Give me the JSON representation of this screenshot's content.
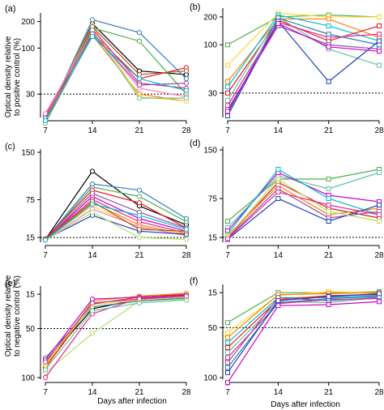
{
  "colors": [
    "#000000",
    "#e41a1c",
    "#4daf4a",
    "#377eb8",
    "#ff7f00",
    "#ffd92f",
    "#e7298a",
    "#a65628",
    "#f781bf",
    "#66c2a5",
    "#984ea3",
    "#1f3fbf",
    "#00bcd4",
    "#b3de69",
    "#cc00cc",
    "#ff6666"
  ],
  "y_axis_titles": {
    "top": [
      "Optical density relative",
      "to positive control (%)"
    ],
    "bottom": [
      "Optical density relative",
      "to negative control (%)"
    ]
  },
  "x_axis_title": "Days after infection",
  "chart_data": [
    {
      "panel": "(a)",
      "type": "line",
      "marker": "circle",
      "yscale": "log",
      "x": [
        7,
        14,
        21,
        28
      ],
      "xticks": [
        "7",
        "14",
        "21",
        "28"
      ],
      "ylim": [
        17,
        230
      ],
      "yticks": [
        30,
        100,
        200
      ],
      "reference_line": 30,
      "series": [
        {
          "values": [
            15,
            190,
            55,
            50
          ],
          "color": "#000000"
        },
        {
          "values": [
            18,
            150,
            45,
            60
          ],
          "color": "#e41a1c"
        },
        {
          "values": [
            16,
            170,
            120,
            30
          ],
          "color": "#4daf4a"
        },
        {
          "values": [
            15,
            210,
            150,
            45
          ],
          "color": "#377eb8"
        },
        {
          "values": [
            14,
            140,
            30,
            25
          ],
          "color": "#ff7f00"
        },
        {
          "values": [
            16,
            180,
            28,
            25
          ],
          "color": "#ffd92f"
        },
        {
          "values": [
            17,
            165,
            40,
            35
          ],
          "color": "#e7298a"
        },
        {
          "values": [
            15,
            175,
            50,
            55
          ],
          "color": "#a65628"
        },
        {
          "values": [
            18,
            155,
            35,
            28
          ],
          "color": "#f781bf"
        },
        {
          "values": [
            14,
            160,
            27,
            27
          ],
          "color": "#66c2a5"
        },
        {
          "values": [
            16,
            145,
            38,
            40
          ],
          "color": "#984ea3"
        },
        {
          "values": [
            15,
            135,
            45,
            33
          ],
          "color": "#00bcd4"
        }
      ]
    },
    {
      "panel": "(b)",
      "type": "line",
      "marker": "square",
      "yscale": "log",
      "x": [
        7,
        14,
        21,
        28
      ],
      "xticks": [
        "7",
        "14",
        "21",
        "28"
      ],
      "ylim": [
        17,
        230
      ],
      "yticks": [
        30,
        100,
        200
      ],
      "reference_line": 30,
      "series": [
        {
          "values": [
            100,
            200,
            210,
            200
          ],
          "color": "#4daf4a"
        },
        {
          "values": [
            60,
            220,
            200,
            200
          ],
          "color": "#ffd92f"
        },
        {
          "values": [
            40,
            190,
            190,
            120
          ],
          "color": "#ff7f00"
        },
        {
          "values": [
            35,
            210,
            160,
            110
          ],
          "color": "#00bcd4"
        },
        {
          "values": [
            30,
            185,
            110,
            160
          ],
          "color": "#e41a1c"
        },
        {
          "values": [
            25,
            200,
            90,
            60
          ],
          "color": "#66c2a5"
        },
        {
          "values": [
            22,
            175,
            120,
            130
          ],
          "color": "#e7298a"
        },
        {
          "values": [
            20,
            160,
            100,
            90
          ],
          "color": "#984ea3"
        },
        {
          "values": [
            18,
            195,
            130,
            100
          ],
          "color": "#377eb8"
        },
        {
          "values": [
            17,
            180,
            40,
            110
          ],
          "color": "#1f3fbf"
        },
        {
          "values": [
            19,
            170,
            95,
            85
          ],
          "color": "#cc00cc"
        }
      ]
    },
    {
      "panel": "(c)",
      "type": "line",
      "marker": "circle",
      "yscale": "linear",
      "x": [
        7,
        14,
        21,
        28
      ],
      "xticks": [
        "7",
        "14",
        "21",
        "28"
      ],
      "ylim": [
        10,
        150
      ],
      "yticks": [
        15,
        75,
        150
      ],
      "reference_line": 15,
      "series": [
        {
          "values": [
            12,
            120,
            65,
            35
          ],
          "color": "#000000"
        },
        {
          "values": [
            12,
            95,
            80,
            40
          ],
          "color": "#4daf4a"
        },
        {
          "values": [
            12,
            100,
            90,
            45
          ],
          "color": "#377eb8"
        },
        {
          "values": [
            13,
            90,
            70,
            30
          ],
          "color": "#e41a1c"
        },
        {
          "values": [
            12,
            80,
            45,
            25
          ],
          "color": "#cc00cc"
        },
        {
          "values": [
            11,
            85,
            55,
            30
          ],
          "color": "#984ea3"
        },
        {
          "values": [
            12,
            75,
            40,
            22
          ],
          "color": "#e7298a"
        },
        {
          "values": [
            11,
            70,
            35,
            20
          ],
          "color": "#ff7f00"
        },
        {
          "values": [
            12,
            65,
            30,
            22
          ],
          "color": "#ffd92f"
        },
        {
          "values": [
            11,
            60,
            32,
            18
          ],
          "color": "#f781bf"
        },
        {
          "values": [
            12,
            50,
            25,
            20
          ],
          "color": "#1f3fbf"
        },
        {
          "values": [
            11,
            55,
            15,
            12
          ],
          "color": "#b3de69"
        },
        {
          "values": [
            12,
            72,
            28,
            25
          ],
          "color": "#a65628"
        },
        {
          "values": [
            11,
            68,
            50,
            28
          ],
          "color": "#00bcd4"
        }
      ]
    },
    {
      "panel": "(d)",
      "type": "line",
      "marker": "square",
      "yscale": "linear",
      "x": [
        7,
        14,
        21,
        28
      ],
      "xticks": [
        "7",
        "14",
        "21",
        "28"
      ],
      "ylim": [
        10,
        150
      ],
      "yticks": [
        15,
        75,
        150
      ],
      "reference_line": 15,
      "series": [
        {
          "values": [
            40,
            105,
            105,
            120
          ],
          "color": "#4daf4a"
        },
        {
          "values": [
            30,
            110,
            90,
            115
          ],
          "color": "#66c2a5"
        },
        {
          "values": [
            25,
            115,
            80,
            70
          ],
          "color": "#cc00cc"
        },
        {
          "values": [
            20,
            120,
            75,
            50
          ],
          "color": "#00bcd4"
        },
        {
          "values": [
            15,
            100,
            60,
            45
          ],
          "color": "#e41a1c"
        },
        {
          "values": [
            18,
            95,
            50,
            60
          ],
          "color": "#ff7f00"
        },
        {
          "values": [
            14,
            90,
            45,
            55
          ],
          "color": "#984ea3"
        },
        {
          "values": [
            12,
            75,
            40,
            65
          ],
          "color": "#1f3fbf"
        },
        {
          "values": [
            16,
            105,
            55,
            40
          ],
          "color": "#b3de69"
        },
        {
          "values": [
            13,
            85,
            65,
            50
          ],
          "color": "#e7298a"
        }
      ]
    },
    {
      "panel": "(e)",
      "type": "line",
      "marker": "circle",
      "yscale": "inverted",
      "x": [
        7,
        14,
        21,
        28
      ],
      "xticks": [
        "7",
        "14",
        "21",
        "28"
      ],
      "ylim": [
        10,
        100
      ],
      "yticks": [
        15,
        50,
        100
      ],
      "reference_line": 50,
      "series": [
        {
          "values": [
            85,
            30,
            20,
            18
          ],
          "color": "#000000"
        },
        {
          "values": [
            90,
            25,
            18,
            15
          ],
          "color": "#e41a1c"
        },
        {
          "values": [
            95,
            55,
            22,
            20
          ],
          "color": "#b3de69"
        },
        {
          "values": [
            80,
            28,
            22,
            19
          ],
          "color": "#377eb8"
        },
        {
          "values": [
            88,
            22,
            17,
            14
          ],
          "color": "#ff7f00"
        },
        {
          "values": [
            82,
            20,
            18,
            16
          ],
          "color": "#cc00cc"
        },
        {
          "values": [
            100,
            35,
            19,
            17
          ],
          "color": "#e7298a"
        },
        {
          "values": [
            92,
            32,
            24,
            21
          ],
          "color": "#66c2a5"
        },
        {
          "values": [
            86,
            26,
            21,
            18
          ],
          "color": "#ffd92f"
        },
        {
          "values": [
            84,
            24,
            20,
            17
          ],
          "color": "#984ea3"
        }
      ]
    },
    {
      "panel": "(f)",
      "type": "line",
      "marker": "square",
      "yscale": "inverted",
      "x": [
        7,
        14,
        21,
        28
      ],
      "xticks": [
        "7",
        "14",
        "21",
        "28"
      ],
      "ylim": [
        10,
        100
      ],
      "yticks": [
        15,
        50,
        100
      ],
      "reference_line": 50,
      "series": [
        {
          "values": [
            45,
            15,
            15,
            14
          ],
          "color": "#4daf4a"
        },
        {
          "values": [
            55,
            18,
            14,
            15
          ],
          "color": "#ffd92f"
        },
        {
          "values": [
            60,
            17,
            16,
            15
          ],
          "color": "#ff7f00"
        },
        {
          "values": [
            65,
            20,
            20,
            18
          ],
          "color": "#00bcd4"
        },
        {
          "values": [
            70,
            22,
            18,
            17
          ],
          "color": "#e41a1c"
        },
        {
          "values": [
            75,
            24,
            25,
            20
          ],
          "color": "#66c2a5"
        },
        {
          "values": [
            80,
            26,
            22,
            21
          ],
          "color": "#e7298a"
        },
        {
          "values": [
            85,
            20,
            23,
            20
          ],
          "color": "#984ea3"
        },
        {
          "values": [
            90,
            25,
            21,
            19
          ],
          "color": "#377eb8"
        },
        {
          "values": [
            105,
            28,
            27,
            24
          ],
          "color": "#cc00cc"
        },
        {
          "values": [
            95,
            23,
            19,
            16
          ],
          "color": "#1f3fbf"
        }
      ]
    }
  ]
}
